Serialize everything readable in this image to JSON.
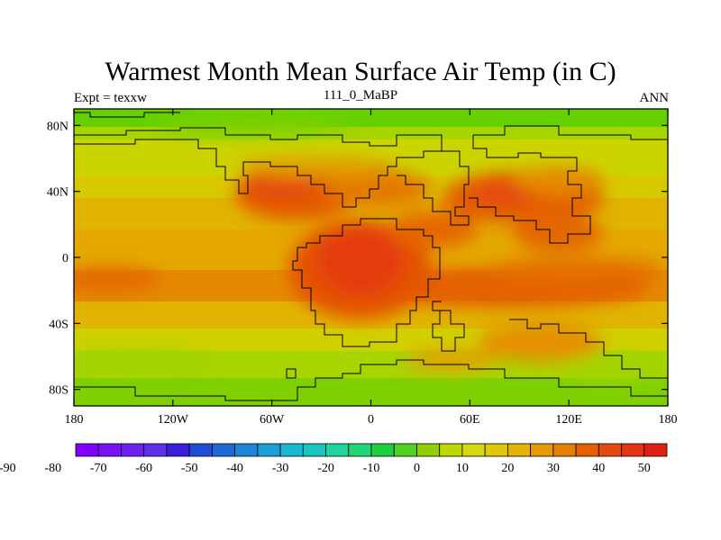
{
  "title": "Warmest Month Mean Surface Air Temp (in C)",
  "left_subtitle": "Expt = texxw",
  "center_subtitle": "111_0_MaBP",
  "right_subtitle": "ANN",
  "map": {
    "projection": "cylindrical-equidistant",
    "lon_range": [
      -180,
      180
    ],
    "lat_range": [
      -90,
      90
    ],
    "x_ticks": [
      {
        "value": -180,
        "label": "180"
      },
      {
        "value": -120,
        "label": "120W"
      },
      {
        "value": -60,
        "label": "60W"
      },
      {
        "value": 0,
        "label": "0"
      },
      {
        "value": 60,
        "label": "60E"
      },
      {
        "value": 120,
        "label": "120E"
      },
      {
        "value": 180,
        "label": "180"
      }
    ],
    "y_ticks": [
      {
        "value": 80,
        "label": "80N"
      },
      {
        "value": 40,
        "label": "40N"
      },
      {
        "value": 0,
        "label": "0"
      },
      {
        "value": -40,
        "label": "40S"
      },
      {
        "value": -80,
        "label": "80S"
      }
    ]
  },
  "colorbar": {
    "labels": [
      "-90",
      "-80",
      "-70",
      "-60",
      "-50",
      "-40",
      "-30",
      "-20",
      "-10",
      "0",
      "10",
      "20",
      "30",
      "40",
      "50"
    ],
    "colors": [
      "#7f00ff",
      "#7a10f5",
      "#6d20ee",
      "#6030e6",
      "#3a1ed8",
      "#1e4cd6",
      "#1c6ad6",
      "#1d86d8",
      "#1aa0d6",
      "#18b8d0",
      "#18c8c0",
      "#20d4a0",
      "#1ed878",
      "#1ed040",
      "#50d020",
      "#90d000",
      "#bcd800",
      "#d8d810",
      "#e0c808",
      "#e4b400",
      "#e49c00",
      "#e48000",
      "#e46000",
      "#e44a10",
      "#e43414",
      "#e02010"
    ]
  }
}
